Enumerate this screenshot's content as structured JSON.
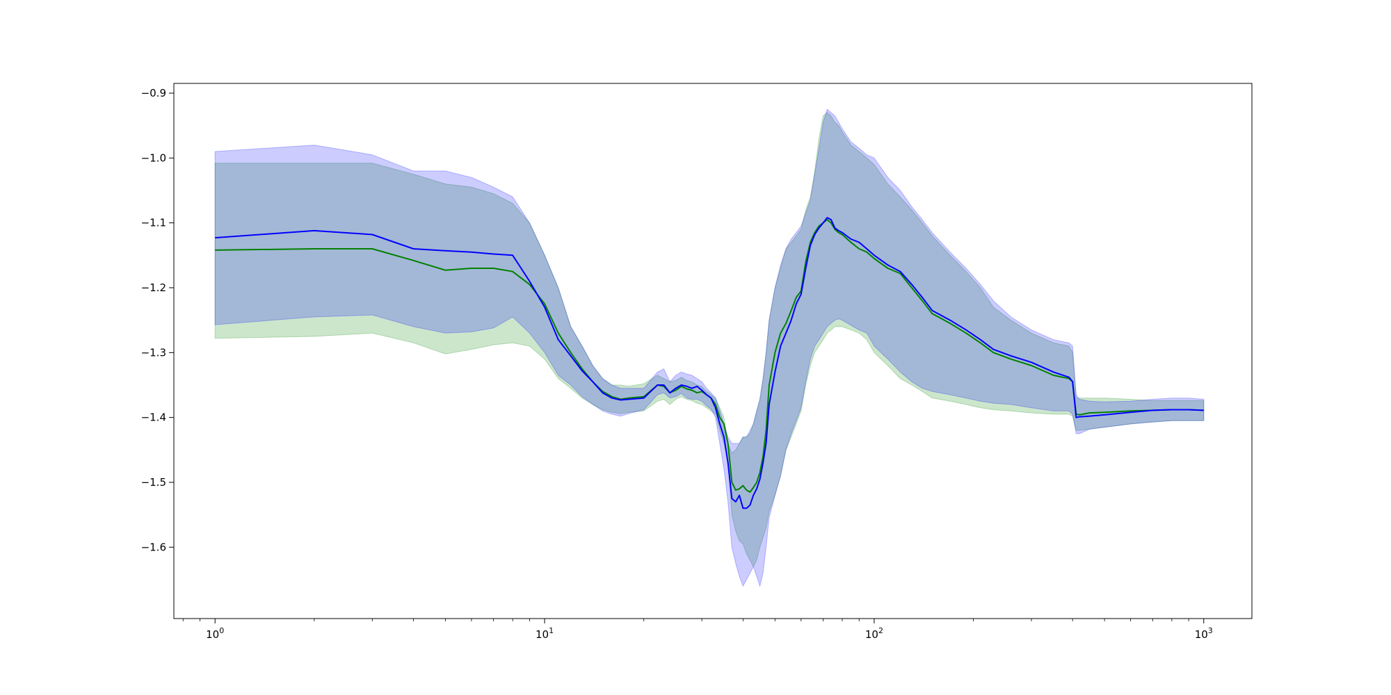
{
  "chart_data": {
    "type": "line",
    "title": "",
    "xlabel": "",
    "ylabel": "",
    "xscale": "log",
    "xlim": [
      0.75,
      1400
    ],
    "ylim": [
      -1.71,
      -0.885
    ],
    "grid": false,
    "x_ticks": [
      {
        "value": 1,
        "base": "10",
        "exp": "0"
      },
      {
        "value": 10,
        "base": "10",
        "exp": "1"
      },
      {
        "value": 100,
        "base": "10",
        "exp": "2"
      },
      {
        "value": 1000,
        "base": "10",
        "exp": "3"
      }
    ],
    "y_ticks": [
      {
        "value": -0.9,
        "label": "−0.9"
      },
      {
        "value": -1.0,
        "label": "−1.0"
      },
      {
        "value": -1.1,
        "label": "−1.1"
      },
      {
        "value": -1.2,
        "label": "−1.2"
      },
      {
        "value": -1.3,
        "label": "−1.3"
      },
      {
        "value": -1.4,
        "label": "−1.4"
      },
      {
        "value": -1.5,
        "label": "−1.5"
      },
      {
        "value": -1.6,
        "label": "−1.6"
      }
    ],
    "series": [
      {
        "color": "#008000",
        "band_color": "#008000",
        "band_opacity": 0.2,
        "x": [
          1,
          2,
          3,
          4,
          5,
          6,
          7,
          8,
          9,
          10,
          11,
          12,
          13,
          14,
          15,
          16,
          17,
          18,
          20,
          22,
          23,
          24,
          25,
          26,
          27,
          28,
          29,
          30,
          31,
          32,
          33,
          34,
          35,
          36,
          37,
          38,
          39,
          40,
          41,
          42,
          43,
          44,
          45,
          46,
          47,
          48,
          50,
          52,
          54,
          56,
          58,
          60,
          62,
          64,
          66,
          68,
          70,
          72,
          74,
          76,
          78,
          80,
          85,
          90,
          95,
          100,
          110,
          120,
          130,
          140,
          150,
          170,
          190,
          210,
          230,
          260,
          300,
          350,
          390,
          400,
          410,
          420,
          450,
          500,
          600,
          700,
          800,
          900,
          1000
        ],
        "y": [
          -1.142,
          -1.14,
          -1.14,
          -1.158,
          -1.173,
          -1.17,
          -1.17,
          -1.175,
          -1.195,
          -1.225,
          -1.27,
          -1.3,
          -1.325,
          -1.345,
          -1.36,
          -1.368,
          -1.372,
          -1.37,
          -1.368,
          -1.35,
          -1.352,
          -1.362,
          -1.358,
          -1.352,
          -1.356,
          -1.358,
          -1.362,
          -1.36,
          -1.365,
          -1.37,
          -1.38,
          -1.4,
          -1.41,
          -1.44,
          -1.5,
          -1.512,
          -1.51,
          -1.505,
          -1.512,
          -1.515,
          -1.508,
          -1.5,
          -1.485,
          -1.46,
          -1.42,
          -1.35,
          -1.3,
          -1.27,
          -1.255,
          -1.235,
          -1.215,
          -1.205,
          -1.16,
          -1.13,
          -1.115,
          -1.105,
          -1.1,
          -1.095,
          -1.1,
          -1.11,
          -1.115,
          -1.118,
          -1.13,
          -1.14,
          -1.145,
          -1.155,
          -1.17,
          -1.178,
          -1.2,
          -1.22,
          -1.24,
          -1.255,
          -1.27,
          -1.285,
          -1.3,
          -1.31,
          -1.32,
          -1.335,
          -1.34,
          -1.345,
          -1.395,
          -1.396,
          -1.393,
          -1.392,
          -1.39,
          -1.389,
          -1.388,
          -1.388,
          -1.389
        ],
        "upper": [
          -1.008,
          -1.008,
          -1.008,
          -1.025,
          -1.04,
          -1.045,
          -1.055,
          -1.07,
          -1.1,
          -1.15,
          -1.2,
          -1.26,
          -1.29,
          -1.32,
          -1.34,
          -1.35,
          -1.35,
          -1.352,
          -1.348,
          -1.335,
          -1.34,
          -1.345,
          -1.343,
          -1.338,
          -1.343,
          -1.345,
          -1.35,
          -1.352,
          -1.36,
          -1.365,
          -1.37,
          -1.385,
          -1.4,
          -1.44,
          -1.455,
          -1.45,
          -1.44,
          -1.43,
          -1.43,
          -1.425,
          -1.41,
          -1.39,
          -1.375,
          -1.34,
          -1.3,
          -1.25,
          -1.2,
          -1.17,
          -1.14,
          -1.13,
          -1.12,
          -1.11,
          -1.08,
          -1.06,
          -1.02,
          -0.97,
          -0.935,
          -0.93,
          -0.935,
          -0.945,
          -0.95,
          -0.96,
          -0.98,
          -0.99,
          -1.0,
          -1.01,
          -1.04,
          -1.06,
          -1.08,
          -1.1,
          -1.12,
          -1.15,
          -1.175,
          -1.2,
          -1.23,
          -1.25,
          -1.27,
          -1.285,
          -1.29,
          -1.3,
          -1.37,
          -1.37,
          -1.37,
          -1.37,
          -1.372,
          -1.374,
          -1.374,
          -1.374,
          -1.374
        ],
        "lower": [
          -1.278,
          -1.275,
          -1.27,
          -1.285,
          -1.302,
          -1.295,
          -1.288,
          -1.285,
          -1.29,
          -1.31,
          -1.34,
          -1.355,
          -1.37,
          -1.38,
          -1.388,
          -1.392,
          -1.394,
          -1.392,
          -1.39,
          -1.375,
          -1.372,
          -1.38,
          -1.372,
          -1.368,
          -1.372,
          -1.374,
          -1.378,
          -1.38,
          -1.385,
          -1.39,
          -1.395,
          -1.42,
          -1.44,
          -1.47,
          -1.55,
          -1.575,
          -1.59,
          -1.595,
          -1.61,
          -1.62,
          -1.63,
          -1.62,
          -1.6,
          -1.585,
          -1.57,
          -1.545,
          -1.52,
          -1.49,
          -1.45,
          -1.43,
          -1.41,
          -1.39,
          -1.35,
          -1.32,
          -1.3,
          -1.29,
          -1.28,
          -1.27,
          -1.265,
          -1.26,
          -1.26,
          -1.26,
          -1.265,
          -1.27,
          -1.28,
          -1.3,
          -1.32,
          -1.34,
          -1.35,
          -1.36,
          -1.37,
          -1.375,
          -1.38,
          -1.385,
          -1.388,
          -1.39,
          -1.393,
          -1.395,
          -1.395,
          -1.398,
          -1.42,
          -1.42,
          -1.418,
          -1.415,
          -1.41,
          -1.407,
          -1.405,
          -1.405,
          -1.405
        ]
      },
      {
        "color": "#0000ff",
        "band_color": "#0000ff",
        "band_opacity": 0.2,
        "x": [
          1,
          2,
          3,
          4,
          5,
          6,
          7,
          8,
          9,
          10,
          11,
          12,
          13,
          14,
          15,
          16,
          17,
          18,
          20,
          22,
          23,
          24,
          25,
          26,
          27,
          28,
          29,
          30,
          31,
          32,
          33,
          34,
          35,
          36,
          37,
          38,
          39,
          40,
          41,
          42,
          43,
          44,
          45,
          46,
          47,
          48,
          50,
          52,
          54,
          56,
          58,
          60,
          62,
          64,
          66,
          68,
          70,
          72,
          74,
          76,
          78,
          80,
          85,
          90,
          95,
          100,
          110,
          120,
          130,
          140,
          150,
          170,
          190,
          210,
          230,
          260,
          300,
          350,
          390,
          400,
          410,
          420,
          450,
          500,
          600,
          700,
          800,
          900,
          1000
        ],
        "y": [
          -1.123,
          -1.112,
          -1.118,
          -1.14,
          -1.143,
          -1.145,
          -1.148,
          -1.15,
          -1.19,
          -1.23,
          -1.28,
          -1.305,
          -1.328,
          -1.345,
          -1.362,
          -1.37,
          -1.373,
          -1.372,
          -1.37,
          -1.35,
          -1.35,
          -1.362,
          -1.355,
          -1.35,
          -1.352,
          -1.355,
          -1.352,
          -1.358,
          -1.365,
          -1.37,
          -1.385,
          -1.41,
          -1.43,
          -1.47,
          -1.525,
          -1.53,
          -1.52,
          -1.54,
          -1.54,
          -1.535,
          -1.52,
          -1.51,
          -1.495,
          -1.47,
          -1.44,
          -1.38,
          -1.33,
          -1.29,
          -1.27,
          -1.25,
          -1.225,
          -1.21,
          -1.17,
          -1.135,
          -1.118,
          -1.108,
          -1.1,
          -1.092,
          -1.095,
          -1.108,
          -1.112,
          -1.115,
          -1.125,
          -1.13,
          -1.14,
          -1.15,
          -1.165,
          -1.175,
          -1.195,
          -1.215,
          -1.235,
          -1.25,
          -1.265,
          -1.28,
          -1.295,
          -1.305,
          -1.315,
          -1.33,
          -1.338,
          -1.345,
          -1.4,
          -1.399,
          -1.398,
          -1.396,
          -1.392,
          -1.389,
          -1.388,
          -1.388,
          -1.389
        ],
        "upper": [
          -0.99,
          -0.98,
          -0.995,
          -1.02,
          -1.02,
          -1.03,
          -1.045,
          -1.06,
          -1.1,
          -1.15,
          -1.2,
          -1.26,
          -1.29,
          -1.32,
          -1.34,
          -1.35,
          -1.355,
          -1.355,
          -1.355,
          -1.33,
          -1.325,
          -1.345,
          -1.335,
          -1.33,
          -1.333,
          -1.335,
          -1.34,
          -1.345,
          -1.355,
          -1.362,
          -1.37,
          -1.39,
          -1.41,
          -1.43,
          -1.44,
          -1.44,
          -1.44,
          -1.43,
          -1.43,
          -1.42,
          -1.41,
          -1.39,
          -1.37,
          -1.34,
          -1.3,
          -1.25,
          -1.2,
          -1.165,
          -1.14,
          -1.125,
          -1.115,
          -1.105,
          -1.085,
          -1.065,
          -1.025,
          -0.985,
          -0.945,
          -0.925,
          -0.93,
          -0.935,
          -0.945,
          -0.955,
          -0.975,
          -0.985,
          -0.995,
          -1.0,
          -1.03,
          -1.05,
          -1.075,
          -1.095,
          -1.115,
          -1.145,
          -1.17,
          -1.195,
          -1.22,
          -1.245,
          -1.265,
          -1.28,
          -1.285,
          -1.29,
          -1.365,
          -1.372,
          -1.375,
          -1.376,
          -1.375,
          -1.372,
          -1.37,
          -1.37,
          -1.372
        ],
        "lower": [
          -1.257,
          -1.245,
          -1.242,
          -1.26,
          -1.27,
          -1.268,
          -1.262,
          -1.245,
          -1.27,
          -1.3,
          -1.335,
          -1.35,
          -1.368,
          -1.38,
          -1.39,
          -1.395,
          -1.398,
          -1.394,
          -1.388,
          -1.365,
          -1.362,
          -1.37,
          -1.368,
          -1.363,
          -1.37,
          -1.372,
          -1.372,
          -1.375,
          -1.382,
          -1.387,
          -1.4,
          -1.44,
          -1.48,
          -1.53,
          -1.6,
          -1.625,
          -1.645,
          -1.66,
          -1.65,
          -1.64,
          -1.63,
          -1.645,
          -1.66,
          -1.64,
          -1.6,
          -1.555,
          -1.52,
          -1.49,
          -1.45,
          -1.425,
          -1.405,
          -1.385,
          -1.345,
          -1.31,
          -1.29,
          -1.28,
          -1.27,
          -1.26,
          -1.255,
          -1.25,
          -1.248,
          -1.25,
          -1.258,
          -1.265,
          -1.27,
          -1.29,
          -1.31,
          -1.33,
          -1.345,
          -1.355,
          -1.36,
          -1.365,
          -1.37,
          -1.375,
          -1.378,
          -1.38,
          -1.385,
          -1.39,
          -1.39,
          -1.395,
          -1.425,
          -1.425,
          -1.418,
          -1.415,
          -1.41,
          -1.407,
          -1.405,
          -1.405,
          -1.405
        ]
      }
    ]
  }
}
